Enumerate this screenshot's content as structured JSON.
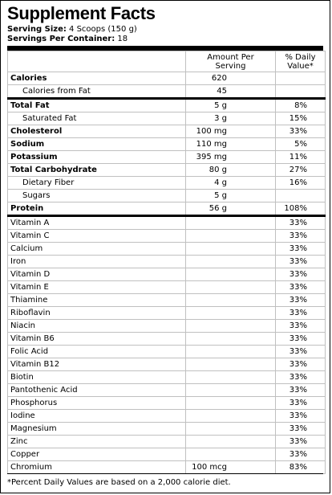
{
  "header": {
    "title": "Supplement Facts",
    "serving_size_label": "Serving Size:",
    "serving_size_value": "4 Scoops (150 g)",
    "servings_label": "Servings Per Container:",
    "servings_value": "18"
  },
  "columns": {
    "amount_line1": "Amount Per",
    "amount_line2": "Serving",
    "dv_line1": "% Daily",
    "dv_line2": "Value*"
  },
  "nutrients": [
    {
      "name": "Calories",
      "amount": "620",
      "dv": "",
      "bold": true
    },
    {
      "name": "Calories from Fat",
      "amount": "45",
      "dv": "",
      "indent": true
    },
    {
      "name": "Total Fat",
      "amount": "5 g",
      "dv": "8%",
      "bold": true
    },
    {
      "name": "Saturated Fat",
      "amount": "3 g",
      "dv": "15%",
      "indent": true
    },
    {
      "name": "Cholesterol",
      "amount": "100 mg",
      "dv": "33%",
      "bold": true
    },
    {
      "name": "Sodium",
      "amount": "110 mg",
      "dv": "5%",
      "bold": true
    },
    {
      "name": "Potassium",
      "amount": "395 mg",
      "dv": "11%",
      "bold": true
    },
    {
      "name": "Total Carbohydrate",
      "amount": "80 g",
      "dv": "27%",
      "bold": true
    },
    {
      "name": "Dietary Fiber",
      "amount": "4 g",
      "dv": "16%",
      "indent": true
    },
    {
      "name": "Sugars",
      "amount": "5 g",
      "dv": "",
      "indent": true
    },
    {
      "name": "Protein",
      "amount": "56 g",
      "dv": "108%",
      "bold": true
    }
  ],
  "vitamins": [
    {
      "name": "Vitamin A",
      "amount": "",
      "dv": "33%"
    },
    {
      "name": "Vitamin C",
      "amount": "",
      "dv": "33%"
    },
    {
      "name": "Calcium",
      "amount": "",
      "dv": "33%"
    },
    {
      "name": "Iron",
      "amount": "",
      "dv": "33%"
    },
    {
      "name": "Vitamin D",
      "amount": "",
      "dv": "33%"
    },
    {
      "name": "Vitamin E",
      "amount": "",
      "dv": "33%"
    },
    {
      "name": "Thiamine",
      "amount": "",
      "dv": "33%"
    },
    {
      "name": "Riboflavin",
      "amount": "",
      "dv": "33%"
    },
    {
      "name": "Niacin",
      "amount": "",
      "dv": "33%"
    },
    {
      "name": "Vitamin B6",
      "amount": "",
      "dv": "33%"
    },
    {
      "name": "Folic Acid",
      "amount": "",
      "dv": "33%"
    },
    {
      "name": "Vitamin B12",
      "amount": "",
      "dv": "33%"
    },
    {
      "name": "Biotin",
      "amount": "",
      "dv": "33%"
    },
    {
      "name": "Pantothenic Acid",
      "amount": "",
      "dv": "33%"
    },
    {
      "name": "Phosphorus",
      "amount": "",
      "dv": "33%"
    },
    {
      "name": "Iodine",
      "amount": "",
      "dv": "33%"
    },
    {
      "name": "Magnesium",
      "amount": "",
      "dv": "33%"
    },
    {
      "name": "Zinc",
      "amount": "",
      "dv": "33%"
    },
    {
      "name": "Copper",
      "amount": "",
      "dv": "33%"
    },
    {
      "name": "Chromium",
      "amount": "100 mcg",
      "dv": "83%"
    }
  ],
  "footnote": "*Percent Daily Values are based on a 2,000 calorie diet."
}
